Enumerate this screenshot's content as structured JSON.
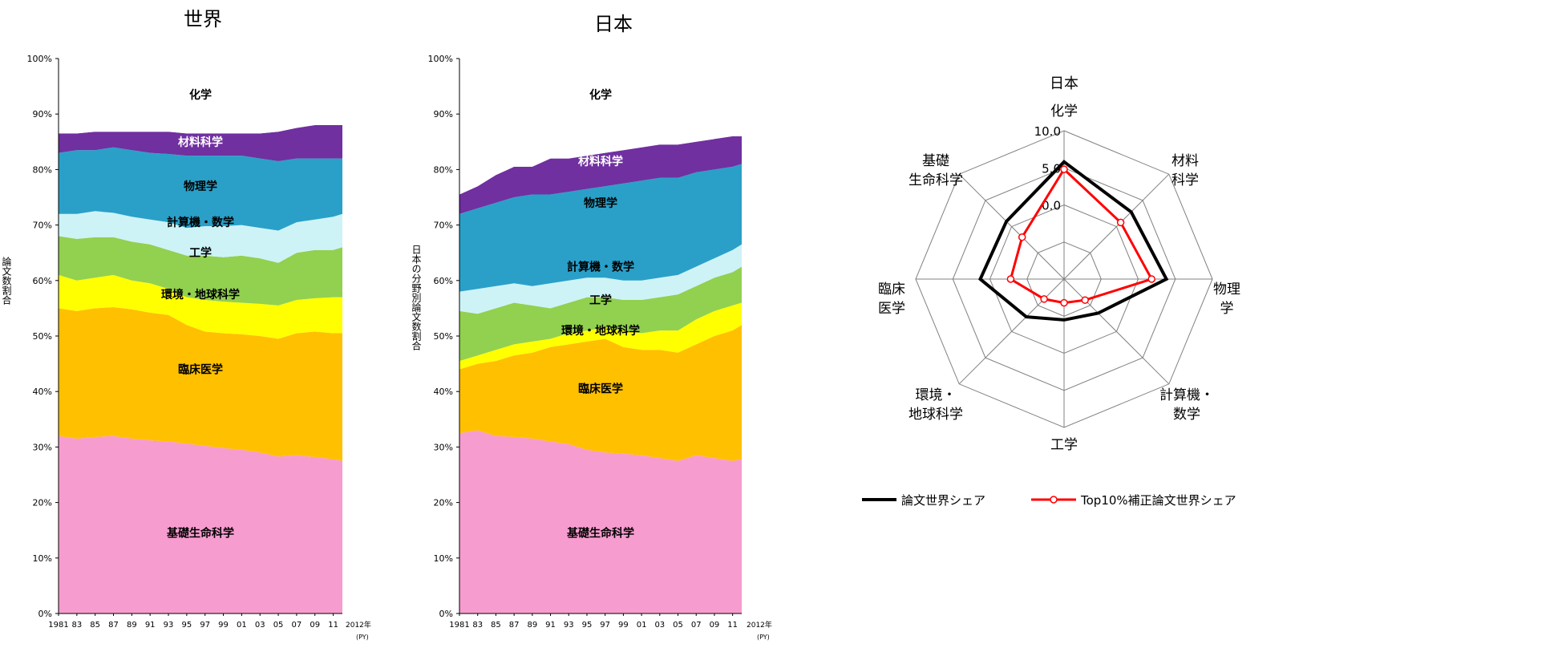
{
  "chart_data": [
    {
      "type": "area",
      "title": "世界",
      "ylabel": "論文数割合",
      "ylim": [
        0,
        100
      ],
      "y_ticks": [
        "0%",
        "10%",
        "20%",
        "30%",
        "40%",
        "50%",
        "60%",
        "70%",
        "80%",
        "90%",
        "100%"
      ],
      "x_tick_labels": [
        "1981",
        "83",
        "85",
        "87",
        "89",
        "91",
        "93",
        "95",
        "97",
        "99",
        "01",
        "03",
        "05",
        "07",
        "09",
        "11"
      ],
      "x_end_label": "2012年",
      "x_unit": "(PY)",
      "x": [
        1981,
        1983,
        1985,
        1987,
        1989,
        1991,
        1993,
        1995,
        1997,
        1999,
        2001,
        2003,
        2005,
        2007,
        2009,
        2011,
        2012
      ],
      "series": [
        {
          "name": "基礎生命科学",
          "color": "#f79ccf",
          "boundary": [
            32,
            31.5,
            31.8,
            32,
            31.5,
            31.2,
            31,
            30.6,
            30.2,
            29.8,
            29.5,
            29,
            28.3,
            28.5,
            28.2,
            27.8,
            27.5
          ]
        },
        {
          "name": "臨床医学",
          "color": "#ffc000",
          "boundary": [
            55,
            54.5,
            55,
            55.2,
            54.8,
            54.2,
            53.8,
            52,
            50.8,
            50.5,
            50.3,
            50,
            49.5,
            50.5,
            50.8,
            50.5,
            50.5
          ]
        },
        {
          "name": "環境・地球科学",
          "color": "#ffff00",
          "boundary": [
            61,
            60,
            60.5,
            61,
            60,
            59.5,
            58.5,
            57,
            56.5,
            56.2,
            56,
            55.8,
            55.5,
            56.5,
            56.8,
            57,
            57
          ]
        },
        {
          "name": "工学",
          "color": "#92d050",
          "boundary": [
            68,
            67.5,
            67.8,
            67.8,
            67,
            66.5,
            65.5,
            64.5,
            64.5,
            64.2,
            64.5,
            64,
            63.2,
            65,
            65.5,
            65.5,
            66
          ]
        },
        {
          "name": "計算機・数学",
          "color": "#cdf3f7",
          "boundary": [
            72,
            72,
            72.5,
            72.2,
            71.5,
            71,
            70.5,
            69.5,
            69.8,
            69.8,
            70,
            69.5,
            69,
            70.5,
            71,
            71.5,
            72
          ]
        },
        {
          "name": "物理学",
          "color": "#2aa0c8",
          "boundary": [
            83,
            83.5,
            83.5,
            84,
            83.5,
            83,
            82.8,
            82.5,
            82.5,
            82.5,
            82.5,
            82,
            81.5,
            82,
            82,
            82,
            82
          ]
        },
        {
          "name": "材料科学",
          "color": "#7030a0",
          "boundary": [
            86.5,
            86.5,
            86.8,
            86.8,
            86.8,
            86.8,
            86.8,
            86.5,
            86.5,
            86.5,
            86.5,
            86.5,
            86.8,
            87.5,
            88,
            88,
            88
          ]
        },
        {
          "name": "化学",
          "color": "#ffffff",
          "boundary": [
            100,
            100,
            100,
            100,
            100,
            100,
            100,
            100,
            100,
            100,
            100,
            100,
            100,
            100,
            100,
            100,
            100
          ]
        }
      ],
      "label_positions": [
        {
          "text": "化学",
          "x": 1996.5,
          "y": 93.5,
          "color": "#000000"
        },
        {
          "text": "材料科学",
          "x": 1996.5,
          "y": 85,
          "color": "#ffffff"
        },
        {
          "text": "物理学",
          "x": 1996.5,
          "y": 77,
          "color": "#000000"
        },
        {
          "text": "計算機・数学",
          "x": 1996.5,
          "y": 70.5,
          "color": "#000000"
        },
        {
          "text": "工学",
          "x": 1996.5,
          "y": 65,
          "color": "#000000"
        },
        {
          "text": "環境・地球科学",
          "x": 1996.5,
          "y": 57.5,
          "color": "#000000"
        },
        {
          "text": "臨床医学",
          "x": 1996.5,
          "y": 44,
          "color": "#000000"
        },
        {
          "text": "基礎生命科学",
          "x": 1996.5,
          "y": 14.5,
          "color": "#000000"
        }
      ]
    },
    {
      "type": "area",
      "title": "日本",
      "ylabel": "日本の分野別論文数割合",
      "ylim": [
        0,
        100
      ],
      "y_ticks": [
        "0%",
        "10%",
        "20%",
        "30%",
        "40%",
        "50%",
        "60%",
        "70%",
        "80%",
        "90%",
        "100%"
      ],
      "x_tick_labels": [
        "1981",
        "83",
        "85",
        "87",
        "89",
        "91",
        "93",
        "95",
        "97",
        "99",
        "01",
        "03",
        "05",
        "07",
        "09",
        "11"
      ],
      "x_end_label": "2012年",
      "x_unit": "(PY)",
      "x": [
        1981,
        1983,
        1985,
        1987,
        1989,
        1991,
        1993,
        1995,
        1997,
        1999,
        2001,
        2003,
        2005,
        2007,
        2009,
        2011,
        2012
      ],
      "series": [
        {
          "name": "基礎生命科学",
          "color": "#f79ccf",
          "boundary": [
            32.5,
            33,
            32,
            31.8,
            31.5,
            31,
            30.5,
            29.5,
            29,
            28.8,
            28.5,
            28,
            27.5,
            28.5,
            28,
            27.5,
            27.8
          ]
        },
        {
          "name": "臨床医学",
          "color": "#ffc000",
          "boundary": [
            44,
            45,
            45.5,
            46.5,
            47,
            48,
            48.5,
            49,
            49.5,
            48,
            47.5,
            47.5,
            47,
            48.5,
            50,
            51,
            52
          ]
        },
        {
          "name": "環境・地球科学",
          "color": "#ffff00",
          "boundary": [
            45.5,
            46.5,
            47.5,
            48.5,
            49,
            49.5,
            50.5,
            51,
            51.5,
            51,
            50.5,
            51,
            51,
            53,
            54.5,
            55.5,
            56
          ]
        },
        {
          "name": "工学",
          "color": "#92d050",
          "boundary": [
            54.5,
            54,
            55,
            56,
            55.5,
            55,
            56,
            57,
            57,
            56.5,
            56.5,
            57,
            57.5,
            59,
            60.5,
            61.5,
            62.5
          ]
        },
        {
          "name": "計算機・数学",
          "color": "#cdf3f7",
          "boundary": [
            58,
            58.5,
            59,
            59.5,
            59,
            59.5,
            60,
            60.5,
            60.5,
            60,
            60,
            60.5,
            61,
            62.5,
            64,
            65.5,
            66.5
          ]
        },
        {
          "name": "物理学",
          "color": "#2aa0c8",
          "boundary": [
            72,
            73,
            74,
            75,
            75.5,
            75.5,
            76,
            76.5,
            77,
            77.5,
            78,
            78.5,
            78.5,
            79.5,
            80,
            80.5,
            81
          ]
        },
        {
          "name": "材料科学",
          "color": "#7030a0",
          "boundary": [
            75.5,
            77,
            79,
            80.5,
            80.5,
            82,
            82,
            82.5,
            83,
            83.5,
            84,
            84.5,
            84.5,
            85,
            85.5,
            86,
            86
          ]
        },
        {
          "name": "化学",
          "color": "#ffffff",
          "boundary": [
            100,
            100,
            100,
            100,
            100,
            100,
            100,
            100,
            100,
            100,
            100,
            100,
            100,
            100,
            100,
            100,
            100
          ]
        }
      ],
      "label_positions": [
        {
          "text": "化学",
          "x": 1996.5,
          "y": 93.5,
          "color": "#000000"
        },
        {
          "text": "材料科学",
          "x": 1996.5,
          "y": 81.5,
          "color": "#ffffff"
        },
        {
          "text": "物理学",
          "x": 1996.5,
          "y": 74,
          "color": "#000000"
        },
        {
          "text": "計算機・数学",
          "x": 1996.5,
          "y": 62.5,
          "color": "#000000"
        },
        {
          "text": "工学",
          "x": 1996.5,
          "y": 56.5,
          "color": "#000000"
        },
        {
          "text": "環境・地球科学",
          "x": 1996.5,
          "y": 51,
          "color": "#000000"
        },
        {
          "text": "臨床医学",
          "x": 1996.5,
          "y": 40.5,
          "color": "#000000"
        },
        {
          "text": "基礎生命科学",
          "x": 1996.5,
          "y": 14.5,
          "color": "#000000"
        }
      ]
    },
    {
      "type": "radar",
      "title": "日本",
      "axes": [
        "化学",
        "材料科学",
        "物理学",
        "計算機・数学",
        "工学",
        "環境・地球科学",
        "臨床医学",
        "基礎生命科学"
      ],
      "axis_label_lines": [
        [
          "化学"
        ],
        [
          "材料",
          "科学"
        ],
        [
          "物理",
          "学"
        ],
        [
          "計算機・",
          "数学"
        ],
        [
          "工学"
        ],
        [
          "環境・",
          "地球科学"
        ],
        [
          "臨床",
          "医学"
        ],
        [
          "基礎",
          "生命科学"
        ]
      ],
      "rlim": [
        -10,
        10
      ],
      "ticks": [
        "0.0",
        "5.0",
        "10.0"
      ],
      "tick_values": [
        0,
        5,
        10
      ],
      "series": [
        {
          "name": "論文世界シェア",
          "color": "#000000",
          "values": [
            5.8,
            2.8,
            3.8,
            -3.5,
            -4.5,
            -2.8,
            1.3,
            1.0
          ]
        },
        {
          "name": "Top10%補正論文世界シェア",
          "color": "#ff0000",
          "values": [
            4.8,
            0.8,
            1.8,
            -6.0,
            -6.8,
            -6.2,
            -2.8,
            -2.0
          ]
        }
      ]
    }
  ]
}
